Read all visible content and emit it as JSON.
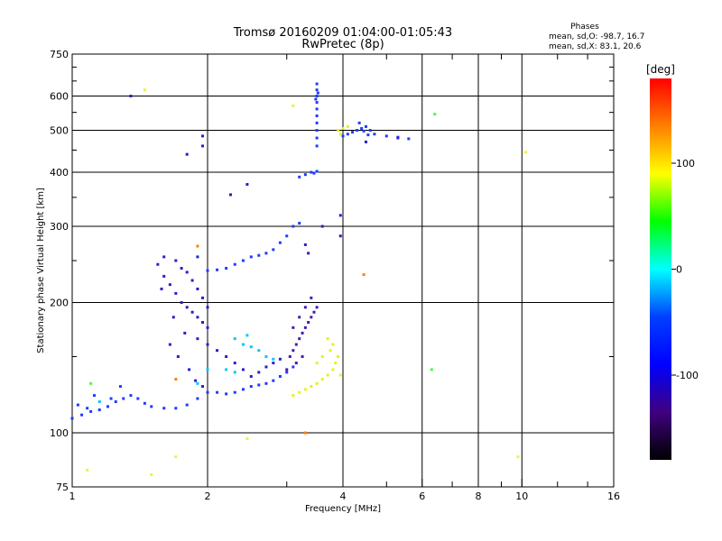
{
  "title_line1": "Tromsø 20160209 01:04:00-01:05:43",
  "title_line2": "RwPretec (8p)",
  "phases": {
    "heading": "Phases",
    "line_o": "mean, sd,O: -98.7, 16.7",
    "line_x": "mean, sd,X:  83.1, 20.6"
  },
  "colorbar": {
    "label": "[deg]",
    "ticks": [
      "100",
      "0",
      "-100"
    ],
    "tick_values": [
      100,
      0,
      -100
    ],
    "range": [
      -180,
      180
    ],
    "colors": [
      "#ff0000",
      "#ff8000",
      "#ffff00",
      "#00ff00",
      "#00ffff",
      "#0040ff",
      "#0000ff",
      "#400080",
      "#000000"
    ]
  },
  "chart_data": {
    "type": "scatter",
    "title": "Tromsø 20160209 01:04:00-01:05:43",
    "subtitle": "RwPretec (8p)",
    "xlabel": "Frequency [MHz]",
    "ylabel": "Stationary phase Virtual Height [km]",
    "x_scale": "log",
    "y_scale": "log",
    "xlim": [
      1,
      16
    ],
    "ylim": [
      75,
      750
    ],
    "x_ticks": [
      1,
      2,
      4,
      6,
      8,
      10,
      16
    ],
    "x_tick_labels": [
      "1",
      "2",
      "4",
      "6",
      "8",
      "10",
      "16"
    ],
    "x_gridlines": [
      2,
      4,
      6,
      8,
      10
    ],
    "y_ticks": [
      75,
      100,
      200,
      300,
      400,
      500,
      600,
      750
    ],
    "y_tick_labels": [
      "75",
      "100",
      "200",
      "300",
      "400",
      "500",
      "600",
      "750"
    ],
    "y_gridlines": [
      100,
      200,
      300,
      400,
      500,
      600
    ],
    "grid": true,
    "color_scale": "phase [deg]",
    "series": [
      {
        "color": "#1e3cff",
        "points": [
          [
            1.0,
            108
          ],
          [
            1.05,
            110
          ],
          [
            1.1,
            112
          ],
          [
            1.15,
            113
          ],
          [
            1.2,
            115
          ],
          [
            1.25,
            118
          ],
          [
            1.3,
            120
          ],
          [
            1.35,
            122
          ],
          [
            1.4,
            120
          ],
          [
            1.45,
            117
          ],
          [
            1.5,
            115
          ],
          [
            1.6,
            114
          ],
          [
            1.7,
            114
          ],
          [
            1.8,
            116
          ],
          [
            1.9,
            120
          ],
          [
            2.0,
            124
          ],
          [
            2.1,
            124
          ],
          [
            2.2,
            123
          ],
          [
            2.3,
            124
          ],
          [
            2.4,
            126
          ],
          [
            2.5,
            128
          ],
          [
            2.6,
            129
          ],
          [
            2.7,
            130
          ],
          [
            2.8,
            132
          ],
          [
            2.9,
            135
          ],
          [
            3.0,
            138
          ],
          [
            3.1,
            142
          ],
          [
            1.03,
            116
          ],
          [
            1.08,
            114
          ],
          [
            1.22,
            120
          ],
          [
            1.28,
            128
          ],
          [
            1.12,
            122
          ]
        ]
      },
      {
        "color": "#2a1fc8",
        "points": [
          [
            1.55,
            245
          ],
          [
            1.6,
            230
          ],
          [
            1.65,
            220
          ],
          [
            1.7,
            210
          ],
          [
            1.75,
            200
          ],
          [
            1.8,
            195
          ],
          [
            1.85,
            190
          ],
          [
            1.9,
            185
          ],
          [
            1.95,
            180
          ],
          [
            2.0,
            175
          ],
          [
            1.6,
            255
          ],
          [
            1.7,
            250
          ],
          [
            1.75,
            240
          ],
          [
            1.8,
            235
          ],
          [
            1.85,
            225
          ],
          [
            1.9,
            215
          ],
          [
            1.95,
            205
          ],
          [
            2.0,
            195
          ],
          [
            1.58,
            215
          ],
          [
            1.68,
            185
          ],
          [
            1.78,
            170
          ],
          [
            1.9,
            165
          ],
          [
            2.0,
            160
          ],
          [
            2.1,
            155
          ],
          [
            2.2,
            150
          ],
          [
            2.3,
            145
          ],
          [
            2.4,
            140
          ],
          [
            2.5,
            135
          ],
          [
            2.6,
            138
          ],
          [
            2.7,
            142
          ],
          [
            2.8,
            145
          ],
          [
            2.9,
            148
          ],
          [
            1.65,
            160
          ],
          [
            1.72,
            150
          ],
          [
            1.82,
            140
          ],
          [
            1.88,
            132
          ],
          [
            1.95,
            128
          ]
        ]
      },
      {
        "color": "#1e3cff",
        "points": [
          [
            2.0,
            237
          ],
          [
            2.1,
            238
          ],
          [
            2.2,
            240
          ],
          [
            2.3,
            245
          ],
          [
            2.4,
            250
          ],
          [
            2.5,
            255
          ],
          [
            2.6,
            257
          ],
          [
            2.7,
            260
          ],
          [
            2.8,
            265
          ],
          [
            2.9,
            275
          ],
          [
            3.0,
            285
          ],
          [
            3.1,
            300
          ],
          [
            3.2,
            305
          ]
        ]
      },
      {
        "color": "#4a1ab0",
        "points": [
          [
            3.05,
            150
          ],
          [
            3.1,
            155
          ],
          [
            3.15,
            160
          ],
          [
            3.2,
            165
          ],
          [
            3.25,
            170
          ],
          [
            3.3,
            175
          ],
          [
            3.35,
            180
          ],
          [
            3.4,
            185
          ],
          [
            3.45,
            190
          ],
          [
            3.5,
            195
          ],
          [
            3.1,
            175
          ],
          [
            3.2,
            185
          ],
          [
            3.3,
            195
          ],
          [
            3.4,
            205
          ],
          [
            3.0,
            140
          ],
          [
            3.15,
            145
          ],
          [
            3.25,
            150
          ]
        ]
      },
      {
        "color": "#1e3cff",
        "points": [
          [
            3.5,
            620
          ],
          [
            3.5,
            600
          ],
          [
            3.5,
            580
          ],
          [
            3.5,
            560
          ],
          [
            3.5,
            540
          ],
          [
            3.5,
            520
          ],
          [
            3.5,
            500
          ],
          [
            3.5,
            480
          ],
          [
            3.5,
            460
          ],
          [
            3.5,
            640
          ],
          [
            3.52,
            610
          ],
          [
            3.48,
            590
          ],
          [
            3.2,
            390
          ],
          [
            3.3,
            395
          ],
          [
            3.4,
            400
          ],
          [
            3.5,
            402
          ],
          [
            3.45,
            398
          ]
        ]
      },
      {
        "color": "#1e3cff",
        "points": [
          [
            4.0,
            485
          ],
          [
            4.1,
            490
          ],
          [
            4.2,
            495
          ],
          [
            4.3,
            500
          ],
          [
            4.4,
            505
          ],
          [
            4.5,
            510
          ],
          [
            4.6,
            500
          ],
          [
            4.7,
            490
          ],
          [
            5.0,
            485
          ],
          [
            5.3,
            482
          ],
          [
            5.6,
            478
          ],
          [
            4.35,
            520
          ],
          [
            4.45,
            498
          ],
          [
            4.55,
            488
          ]
        ]
      },
      {
        "color": "#e8f020",
        "points": [
          [
            3.1,
            122
          ],
          [
            3.2,
            124
          ],
          [
            3.3,
            126
          ],
          [
            3.4,
            128
          ],
          [
            3.5,
            130
          ],
          [
            3.6,
            133
          ],
          [
            3.7,
            136
          ],
          [
            3.8,
            140
          ],
          [
            3.85,
            145
          ],
          [
            3.9,
            150
          ],
          [
            3.5,
            145
          ],
          [
            3.6,
            150
          ],
          [
            3.75,
            155
          ],
          [
            3.8,
            160
          ],
          [
            3.7,
            165
          ],
          [
            3.9,
            500
          ],
          [
            4.0,
            505
          ],
          [
            4.1,
            510
          ],
          [
            3.95,
            490
          ]
        ]
      },
      {
        "color": "#00c8ff",
        "points": [
          [
            2.3,
            165
          ],
          [
            2.4,
            160
          ],
          [
            2.5,
            158
          ],
          [
            2.6,
            155
          ],
          [
            2.7,
            150
          ],
          [
            2.8,
            148
          ],
          [
            2.2,
            140
          ],
          [
            2.3,
            138
          ],
          [
            2.45,
            168
          ],
          [
            1.9,
            130
          ],
          [
            2.0,
            140
          ],
          [
            1.15,
            118
          ]
        ]
      },
      {
        "color": "#2a1fc8",
        "points": [
          [
            1.35,
            600
          ],
          [
            1.8,
            440
          ],
          [
            1.95,
            460
          ],
          [
            1.95,
            485
          ],
          [
            2.25,
            355
          ],
          [
            2.45,
            375
          ],
          [
            1.9,
            255
          ],
          [
            3.3,
            272
          ],
          [
            3.35,
            260
          ],
          [
            3.6,
            300
          ],
          [
            3.95,
            318
          ],
          [
            3.95,
            285
          ],
          [
            4.5,
            470
          ],
          [
            5.3,
            480
          ]
        ]
      },
      {
        "color": "#44ff44",
        "points": [
          [
            6.4,
            545
          ],
          [
            6.3,
            140
          ],
          [
            1.1,
            130
          ]
        ]
      },
      {
        "color": "#f0f040",
        "points": [
          [
            1.45,
            620
          ],
          [
            1.08,
            82
          ],
          [
            1.5,
            80
          ],
          [
            1.7,
            88
          ],
          [
            2.45,
            97
          ],
          [
            9.8,
            88
          ],
          [
            10.2,
            445
          ],
          [
            3.1,
            570
          ],
          [
            3.95,
            136
          ]
        ]
      },
      {
        "color": "#ff7f00",
        "points": [
          [
            4.45,
            232
          ],
          [
            1.9,
            270
          ],
          [
            1.7,
            133
          ],
          [
            3.3,
            100
          ]
        ]
      }
    ]
  }
}
